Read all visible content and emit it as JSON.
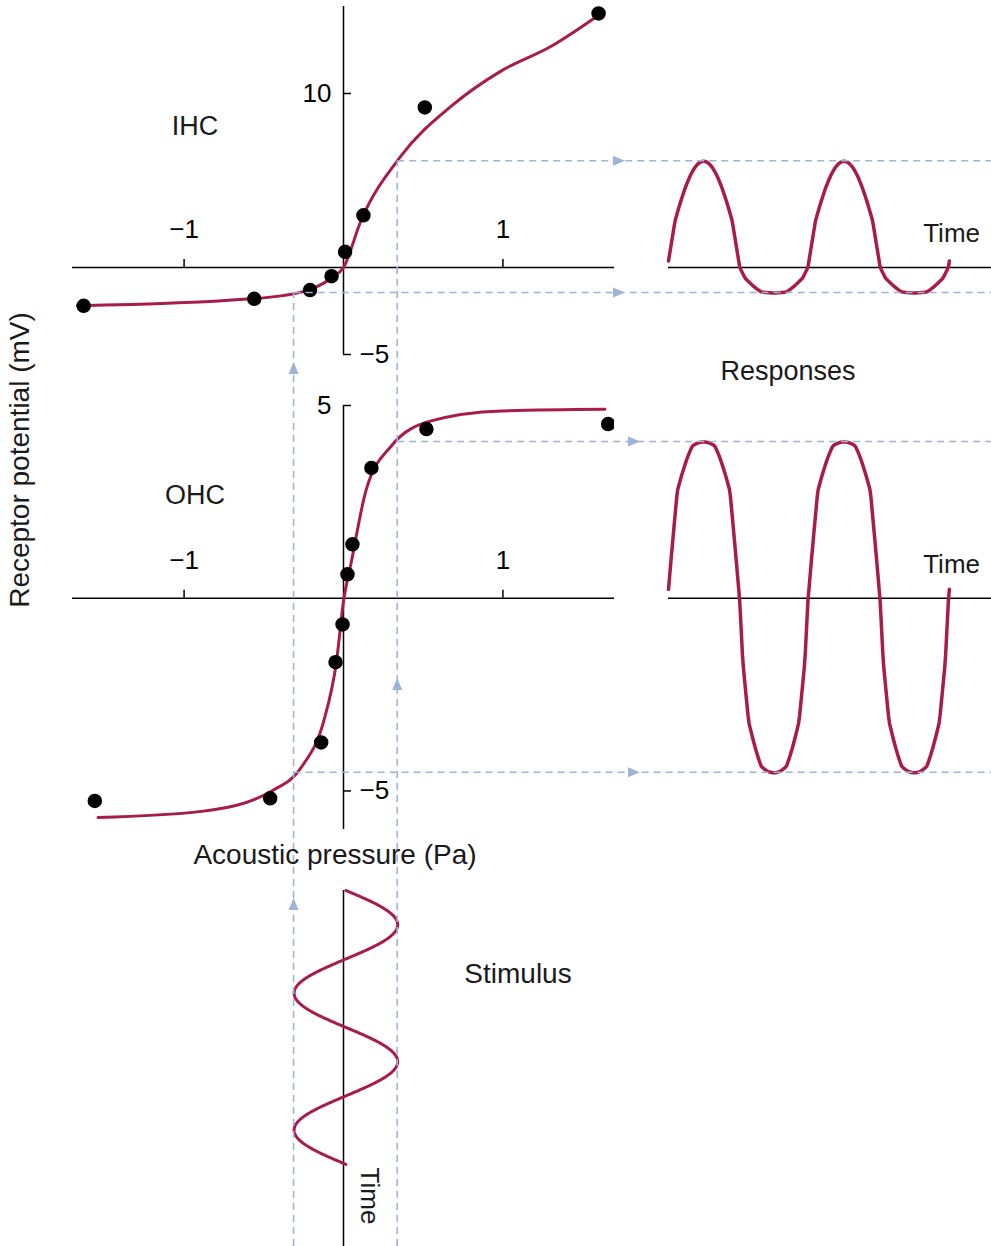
{
  "y_label": "Receptor potential (mV)",
  "x_label": "Acoustic pressure (Pa)",
  "chart_data": [
    {
      "type": "scatter",
      "title": "IHC",
      "x": [
        -1.63,
        -0.56,
        -0.21,
        -0.075,
        0.01,
        0.125,
        0.51,
        1.6
      ],
      "values": [
        -2.2,
        -1.8,
        -1.3,
        -0.5,
        0.9,
        3.0,
        9.2,
        14.6
      ],
      "color": "#000000",
      "marker": "circle",
      "fit": {
        "x": [
          -1.67,
          -0.58,
          -0.26,
          -0.075,
          0,
          0.11,
          0.36,
          0.68,
          0.99,
          1.3,
          1.6
        ],
        "values": [
          -2.2,
          -1.8,
          -1.4,
          -0.6,
          0,
          2.7,
          6.4,
          9.3,
          11.3,
          12.7,
          14.5
        ],
        "color": "#a81c48"
      },
      "xlim": [
        -1.7,
        1.7
      ],
      "xticks": [
        -1,
        1
      ],
      "ylim": [
        -5,
        15
      ],
      "yticks": [
        -5,
        10
      ]
    },
    {
      "type": "scatter",
      "title": "OHC",
      "x": [
        -1.56,
        -0.46,
        -0.14,
        -0.05,
        -0.006,
        0.025,
        0.056,
        0.175,
        0.52,
        1.66
      ],
      "values": [
        -5.26,
        -5.19,
        -3.74,
        -1.66,
        -0.68,
        0.62,
        1.4,
        3.38,
        4.39,
        4.52
      ],
      "color": "#000000",
      "marker": "circle",
      "fit": {
        "x": [
          -1.54,
          -0.89,
          -0.45,
          -0.26,
          -0.125,
          -0.044,
          0,
          0.05,
          0.14,
          0.3,
          0.55,
          0.99,
          1.64
        ],
        "values": [
          -5.69,
          -5.53,
          -5.0,
          -4.36,
          -3.2,
          -1.64,
          -0.08,
          0.96,
          2.78,
          3.95,
          4.6,
          4.86,
          4.9
        ],
        "color": "#a81c48"
      },
      "xlim": [
        -1.7,
        1.7
      ],
      "xticks": [
        -1,
        1
      ],
      "ylim": [
        -6,
        5
      ],
      "yticks": [
        -5,
        5
      ]
    }
  ],
  "stimulus": {
    "label": "Stimulus",
    "time_label": "Time",
    "min": -0.31,
    "max": 0.34,
    "cycles": 2,
    "color": "#a81c48"
  },
  "responses": {
    "label": "Responses",
    "time_label": "Time",
    "cycles": 2,
    "color": "#a81c48"
  }
}
